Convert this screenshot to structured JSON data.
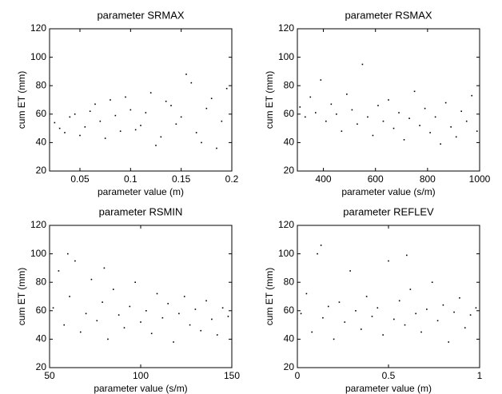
{
  "chart_data": [
    {
      "type": "scatter",
      "title": "parameter SRMAX",
      "x_label": "parameter value (m)",
      "y_label": "cum ET (mm)",
      "color": "#000000",
      "xlim": [
        0.02,
        0.2
      ],
      "xticks": [
        0.05,
        0.1,
        0.15,
        0.2
      ],
      "ylim": [
        20,
        120
      ],
      "yticks": [
        20,
        40,
        60,
        80,
        100,
        120
      ],
      "x": [
        0.03,
        0.04,
        0.05,
        0.06,
        0.07,
        0.08,
        0.09,
        0.1,
        0.11,
        0.12,
        0.13,
        0.14,
        0.15,
        0.16,
        0.17,
        0.18,
        0.19,
        0.025,
        0.035,
        0.045,
        0.055,
        0.065,
        0.075,
        0.085,
        0.095,
        0.105,
        0.115,
        0.125,
        0.135,
        0.145,
        0.155,
        0.165,
        0.175,
        0.185,
        0.195
      ],
      "values": [
        50,
        58,
        45,
        62,
        55,
        70,
        48,
        63,
        52,
        75,
        44,
        66,
        58,
        82,
        40,
        71,
        55,
        54,
        47,
        60,
        51,
        67,
        43,
        59,
        72,
        49,
        61,
        38,
        69,
        53,
        88,
        47,
        64,
        36,
        78
      ]
    },
    {
      "type": "scatter",
      "title": "parameter RSMAX",
      "x_label": "parameter value (s/m)",
      "y_label": "cum ET (mm)",
      "color": "#000000",
      "xlim": [
        300,
        1000
      ],
      "xticks": [
        400,
        600,
        800,
        1000
      ],
      "ylim": [
        20,
        120
      ],
      "yticks": [
        20,
        40,
        60,
        80,
        100,
        120
      ],
      "x": [
        310,
        330,
        350,
        370,
        390,
        410,
        430,
        450,
        470,
        490,
        510,
        530,
        550,
        570,
        590,
        610,
        630,
        650,
        670,
        690,
        710,
        730,
        750,
        770,
        790,
        810,
        830,
        850,
        870,
        890,
        910,
        930,
        950,
        970,
        990
      ],
      "values": [
        65,
        58,
        72,
        61,
        84,
        55,
        67,
        60,
        48,
        74,
        63,
        53,
        95,
        58,
        45,
        66,
        55,
        70,
        50,
        61,
        42,
        57,
        76,
        52,
        64,
        47,
        58,
        39,
        68,
        51,
        44,
        62,
        55,
        73,
        48
      ]
    },
    {
      "type": "scatter",
      "title": "parameter RSMIN",
      "x_label": "parameter value (s/m)",
      "y_label": "cum ET (mm)",
      "color": "#000000",
      "xlim": [
        50,
        150
      ],
      "xticks": [
        50,
        100,
        150
      ],
      "ylim": [
        20,
        120
      ],
      "yticks": [
        20,
        40,
        60,
        80,
        100,
        120
      ],
      "x": [
        52,
        55,
        58,
        61,
        64,
        67,
        70,
        73,
        76,
        79,
        82,
        85,
        88,
        91,
        94,
        97,
        100,
        103,
        106,
        109,
        112,
        115,
        118,
        121,
        124,
        127,
        130,
        133,
        136,
        139,
        142,
        145,
        148,
        60,
        80
      ],
      "values": [
        62,
        88,
        50,
        70,
        95,
        45,
        58,
        82,
        53,
        66,
        40,
        75,
        57,
        48,
        63,
        80,
        52,
        60,
        44,
        72,
        55,
        65,
        38,
        58,
        70,
        50,
        61,
        46,
        67,
        54,
        43,
        62,
        56,
        100,
        90
      ]
    },
    {
      "type": "scatter",
      "title": "parameter REFLEV",
      "x_label": "parameter value (m)",
      "y_label": "cum ET (mm)",
      "color": "#000000",
      "xlim": [
        0,
        1
      ],
      "xticks": [
        0,
        0.5,
        1
      ],
      "ylim": [
        20,
        120
      ],
      "yticks": [
        20,
        40,
        60,
        80,
        100,
        120
      ],
      "x": [
        0.02,
        0.05,
        0.08,
        0.11,
        0.14,
        0.17,
        0.2,
        0.23,
        0.26,
        0.29,
        0.32,
        0.35,
        0.38,
        0.41,
        0.44,
        0.47,
        0.5,
        0.53,
        0.56,
        0.59,
        0.62,
        0.65,
        0.68,
        0.71,
        0.74,
        0.77,
        0.8,
        0.83,
        0.86,
        0.89,
        0.92,
        0.95,
        0.98,
        0.13,
        0.6
      ],
      "values": [
        58,
        72,
        45,
        100,
        55,
        63,
        40,
        66,
        52,
        88,
        60,
        47,
        70,
        56,
        62,
        43,
        95,
        54,
        67,
        50,
        75,
        58,
        45,
        61,
        80,
        53,
        64,
        38,
        59,
        69,
        48,
        57,
        62,
        106,
        99
      ]
    }
  ]
}
